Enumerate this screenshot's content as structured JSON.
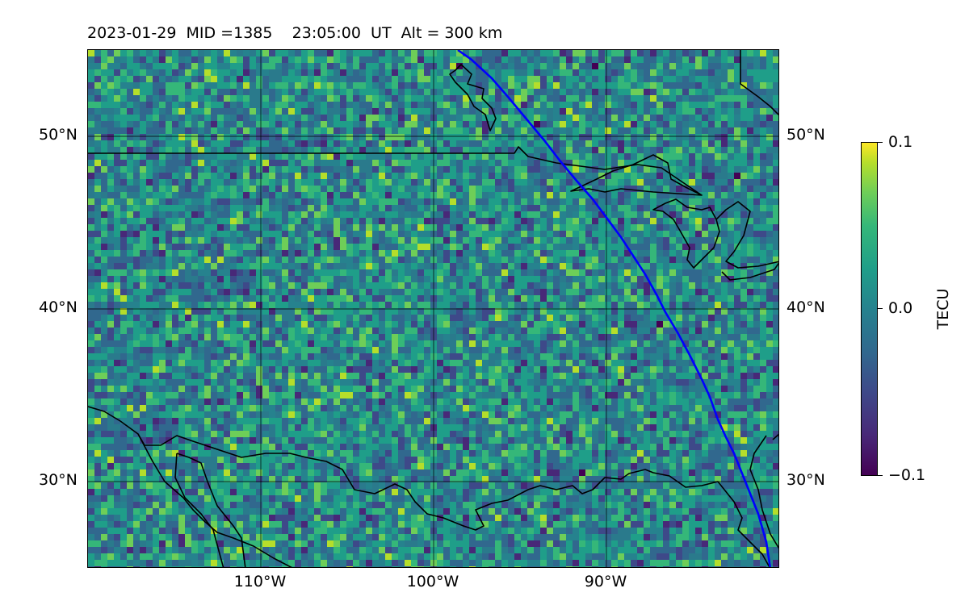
{
  "title": {
    "date": "2023-01-29",
    "mid": "MID =1385",
    "time": "23:05:00  UT",
    "alt": "Alt = 300 km"
  },
  "map": {
    "lon_range": [
      -120,
      -80
    ],
    "lat_range": [
      25,
      55
    ],
    "lat_labels_left": [
      "50°N",
      "40°N",
      "30°N"
    ],
    "lat_labels_right": [
      "50°N",
      "40°N",
      "30°N"
    ],
    "lon_labels": [
      "110°W",
      "100°W",
      "90°W"
    ],
    "gridlines": true,
    "coastline_color": "#000000",
    "track_color": "#0000ff"
  },
  "colorbar": {
    "label": "TECU",
    "tick_max": "0.1",
    "tick_mid": "0.0",
    "tick_min": "−0.1",
    "vmin": -0.1,
    "vmax": 0.1,
    "colormap": "viridis",
    "orientation": "vertical"
  }
}
